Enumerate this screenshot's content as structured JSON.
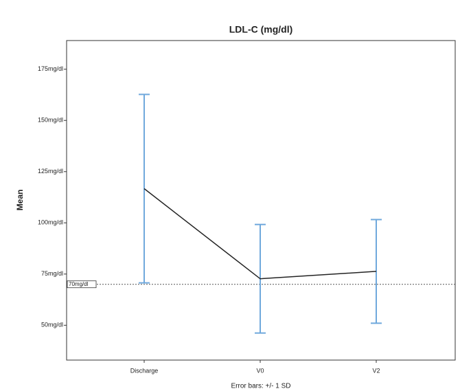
{
  "chart_data": {
    "type": "line",
    "title": "LDL-C (mg/dl)",
    "y_label": "Mean",
    "footnote": "Error bars: +/- 1 SD",
    "categories": [
      "Discharge",
      "V0",
      "V2"
    ],
    "values": [
      116.7,
      72.7,
      76.3
    ],
    "errors": [
      46,
      26.5,
      25.3
    ],
    "color": "#222222",
    "error_color": "#6fa8dc",
    "ylim": [
      33,
      189
    ],
    "yticks": [
      {
        "value": 50,
        "label": "50mg/dl"
      },
      {
        "value": 75,
        "label": "75mg/dl"
      },
      {
        "value": 100,
        "label": "100mg/dl"
      },
      {
        "value": 125,
        "label": "125mg/dl"
      },
      {
        "value": 150,
        "label": "150mg/dl"
      },
      {
        "value": 175,
        "label": "175mg/dl"
      }
    ],
    "reference_line": {
      "value": 70,
      "label": "70mg/dl"
    }
  }
}
